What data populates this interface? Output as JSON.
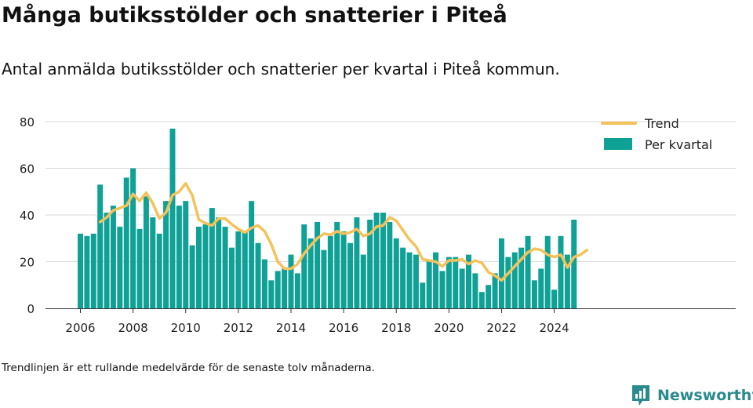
{
  "header": {
    "title": "Många butiksstölder och snatterier i Piteå",
    "subtitle": "Antal anmälda butiksstölder och snatterier per kvartal i Piteå kommun."
  },
  "footer": {
    "note": "Trendlinjen är ett rullande medelvärde för de senaste tolv månaderna.",
    "brand": "Newsworthy"
  },
  "colors": {
    "bar": "#0fa196",
    "trend": "#f4c25a",
    "grid": "#d9d9d9",
    "brand": "#2a8a8e"
  },
  "chart_data": {
    "type": "bar",
    "legend_position": "top-right",
    "grid": true,
    "ylim": [
      0,
      80
    ],
    "yticks": [
      0,
      20,
      40,
      60,
      80
    ],
    "xticks": [
      "2006",
      "2008",
      "2010",
      "2012",
      "2014",
      "2016",
      "2018",
      "2020",
      "2022",
      "2024"
    ],
    "x_start_year": 2006,
    "series": [
      {
        "name": "Per kvartal",
        "type": "bar",
        "values": [
          32,
          31,
          32,
          53,
          41,
          44,
          35,
          56,
          60,
          34,
          48,
          39,
          32,
          46,
          77,
          44,
          46,
          27,
          35,
          36,
          43,
          39,
          35,
          26,
          33,
          33,
          46,
          28,
          21,
          12,
          16,
          17,
          23,
          15,
          36,
          30,
          37,
          25,
          31,
          37,
          33,
          28,
          39,
          23,
          38,
          41,
          41,
          37,
          30,
          26,
          24,
          23,
          11,
          21,
          24,
          16,
          22,
          22,
          17,
          23,
          15,
          7,
          10,
          15,
          30,
          22,
          24,
          26,
          31,
          12,
          17,
          31,
          8,
          31,
          23,
          38
        ]
      },
      {
        "name": "Trend",
        "type": "line",
        "start_index": 3,
        "values": [
          37,
          39,
          42,
          43,
          44,
          49,
          46,
          49.5,
          45,
          38.5,
          41,
          48.5,
          50,
          53.5,
          48.5,
          38,
          36.5,
          35.5,
          38.5,
          38.5,
          36,
          34,
          32.5,
          34.5,
          35.5,
          33,
          27.5,
          20,
          17,
          17,
          19,
          23.5,
          27,
          30,
          32,
          31.5,
          33,
          32,
          32.5,
          34,
          31,
          32,
          35,
          35.5,
          39,
          37.5,
          33.5,
          29.5,
          26.5,
          21,
          20.5,
          20,
          18,
          20.5,
          20.5,
          21,
          19,
          20.5,
          19.5,
          15.5,
          14,
          12,
          15,
          18,
          21,
          24,
          25.5,
          25,
          23,
          22,
          23,
          17.5,
          22,
          23,
          25
        ]
      }
    ]
  }
}
